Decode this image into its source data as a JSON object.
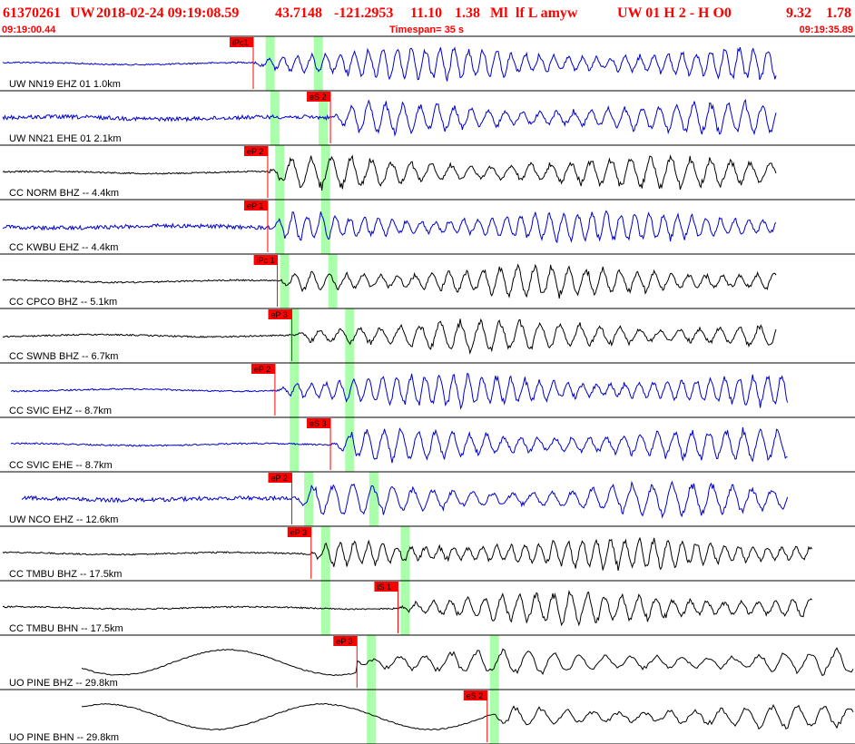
{
  "header": {
    "event_id": "61370261",
    "network": "UW",
    "datetime": "2018-02-24 09:19:08.59",
    "lat": "43.7148",
    "lon": "-121.2953",
    "depth": "11.10",
    "magnitude": "1.38",
    "mag_type": "Ml",
    "flags": "lf  L amyw",
    "solution": "UW 01  H   2  -  H O0",
    "extra1": "9.32",
    "extra2": "1.78"
  },
  "timebar": {
    "start_time": "09:19:00.44",
    "timespan_label": "Timespan=  35 s",
    "end_time": "09:19:35.89"
  },
  "chart_data": {
    "type": "line",
    "title": "",
    "xlabel": "",
    "ylabel": "",
    "time_start_s": 0,
    "time_end_s": 35.45,
    "traces": [
      {
        "label": "UW NN19 EHZ 01 1.0km",
        "color": "#0000cc",
        "picks": [
          {
            "label": "iPc1",
            "t": 10.5
          }
        ],
        "green_marks_s": [
          11.2,
          13.2
        ]
      },
      {
        "label": "UW NN21 EHE 01 2.1km",
        "color": "#0000cc",
        "picks": [
          {
            "label": "eS 2",
            "t": 13.7
          }
        ],
        "green_marks_s": [
          11.4,
          13.4
        ]
      },
      {
        "label": "CC NORM BHZ -- 4.4km",
        "color": "#000000",
        "picks": [
          {
            "label": "eP 2",
            "t": 11.1
          }
        ],
        "green_marks_s": [
          11.6,
          13.5
        ]
      },
      {
        "label": "CC KWBU EHZ -- 4.4km",
        "color": "#0000cc",
        "picks": [
          {
            "label": "eP 1",
            "t": 11.1
          }
        ],
        "green_marks_s": [
          11.6,
          13.5
        ]
      },
      {
        "label": "CC CPCO BHZ -- 5.1km",
        "color": "#000000",
        "picks": [
          {
            "label": "iPc 1",
            "t": 11.5
          }
        ],
        "green_marks_s": [
          11.8,
          13.8
        ]
      },
      {
        "label": "CC SWNB BHZ -- 6.7km",
        "color": "#000000",
        "picks": [
          {
            "label": "eP 3",
            "t": 12.1
          }
        ],
        "green_marks_s": [
          12.2,
          14.5
        ]
      },
      {
        "label": "CC SVIC EHZ -- 8.7km",
        "color": "#0000cc",
        "picks": [
          {
            "label": "eP 2",
            "t": 11.4
          }
        ],
        "green_marks_s": [
          12.2,
          14.5
        ]
      },
      {
        "label": "CC SVIC EHE -- 8.7km",
        "color": "#0000cc",
        "picks": [
          {
            "label": "eS 3",
            "t": 13.7
          }
        ],
        "green_marks_s": [
          12.2,
          14.5
        ]
      },
      {
        "label": "UW NCO EHZ -- 12.6km",
        "color": "#0000cc",
        "picks": [
          {
            "label": "eP 2",
            "t": 12.1
          }
        ],
        "green_marks_s": [
          12.8,
          15.5
        ]
      },
      {
        "label": "CC TMBU BHZ -- 17.5km",
        "color": "#000000",
        "picks": [
          {
            "label": "eP 3",
            "t": 12.9
          }
        ],
        "green_marks_s": [
          13.5,
          16.8
        ]
      },
      {
        "label": "CC TMBU BHN -- 17.5km",
        "color": "#000000",
        "picks": [
          {
            "label": "iS 1",
            "t": 16.5
          }
        ],
        "green_marks_s": [
          13.5,
          16.8
        ]
      },
      {
        "label": "UO PINE BHZ -- 29.8km",
        "color": "#000000",
        "picks": [
          {
            "label": "eP 3",
            "t": 14.8
          }
        ],
        "green_marks_s": [
          15.4,
          20.5
        ]
      },
      {
        "label": "UO PINE BHN -- 29.8km",
        "color": "#000000",
        "picks": [
          {
            "label": "eS 2",
            "t": 20.2
          }
        ],
        "green_marks_s": [
          15.4,
          20.5
        ]
      }
    ]
  }
}
